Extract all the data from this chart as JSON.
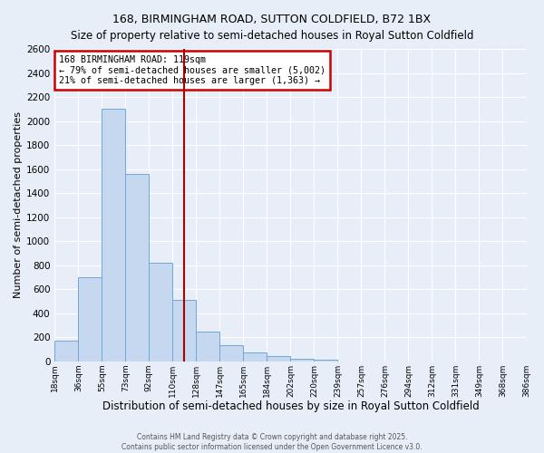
{
  "title": "168, BIRMINGHAM ROAD, SUTTON COLDFIELD, B72 1BX",
  "subtitle": "Size of property relative to semi-detached houses in Royal Sutton Coldfield",
  "xlabel": "Distribution of semi-detached houses by size in Royal Sutton Coldfield",
  "ylabel": "Number of semi-detached properties",
  "categories": [
    "18sqm",
    "36sqm",
    "55sqm",
    "73sqm",
    "92sqm",
    "110sqm",
    "128sqm",
    "147sqm",
    "165sqm",
    "184sqm",
    "202sqm",
    "220sqm",
    "239sqm",
    "257sqm",
    "276sqm",
    "294sqm",
    "312sqm",
    "331sqm",
    "349sqm",
    "368sqm",
    "386sqm"
  ],
  "bar_heights": [
    170,
    700,
    2100,
    1560,
    820,
    510,
    250,
    130,
    70,
    40,
    20,
    10,
    0,
    0,
    0,
    0,
    0,
    0,
    0,
    0
  ],
  "bar_color": "#c5d8f0",
  "bar_edge_color": "#6fa8d5",
  "vline_bin": 5,
  "vline_color": "#aa0000",
  "annotation_title": "168 BIRMINGHAM ROAD: 119sqm",
  "annotation_line1": "← 79% of semi-detached houses are smaller (5,002)",
  "annotation_line2": "21% of semi-detached houses are larger (1,363) →",
  "annotation_box_color": "#cc0000",
  "ylim": [
    0,
    2600
  ],
  "yticks": [
    0,
    200,
    400,
    600,
    800,
    1000,
    1200,
    1400,
    1600,
    1800,
    2000,
    2200,
    2400,
    2600
  ],
  "footer1": "Contains HM Land Registry data © Crown copyright and database right 2025.",
  "footer2": "Contains public sector information licensed under the Open Government Licence v3.0.",
  "bg_color": "#e8eef8",
  "plot_bg_color": "#e8eef8",
  "grid_color": "#ffffff",
  "title_fontsize": 9,
  "subtitle_fontsize": 8.5,
  "ylabel_fontsize": 8,
  "xlabel_fontsize": 8.5
}
